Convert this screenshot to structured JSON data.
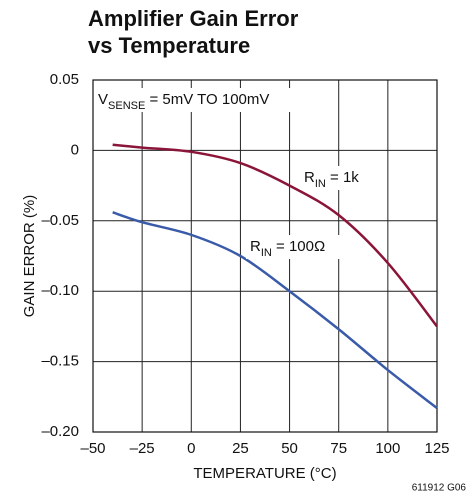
{
  "chart_data": {
    "type": "line",
    "title": [
      "Amplifier Gain Error",
      "vs Temperature"
    ],
    "x_label": "TEMPERATURE (°C)",
    "y_label": "GAIN ERROR (%)",
    "annotation": {
      "main": "V",
      "sub": "SENSE",
      "rest": " = 5mV TO 100mV"
    },
    "footnote": "611912 G06",
    "x": [
      -40,
      -25,
      0,
      25,
      50,
      75,
      100,
      125
    ],
    "series": [
      {
        "name": {
          "main": "R",
          "sub": "IN",
          "rest": " = 1k"
        },
        "color": "#8b1538",
        "values": [
          0.004,
          0.002,
          -0.001,
          -0.009,
          -0.025,
          -0.046,
          -0.08,
          -0.125
        ]
      },
      {
        "name": {
          "main": "R",
          "sub": "IN",
          "rest": " = 100Ω"
        },
        "color": "#3a5ba9",
        "values": [
          -0.044,
          -0.051,
          -0.06,
          -0.075,
          -0.1,
          -0.127,
          -0.156,
          -0.183
        ]
      }
    ],
    "xlim": [
      -50,
      125
    ],
    "xticks": [
      {
        "value": -50,
        "label": "–50"
      },
      {
        "value": -25,
        "label": "–25"
      },
      0,
      25,
      50,
      75,
      100,
      125
    ],
    "ylim": [
      -0.2,
      0.05
    ],
    "yticks": [
      0.05,
      0,
      {
        "value": -0.05,
        "label": "–0.05"
      },
      {
        "value": -0.1,
        "label": "–0.10"
      },
      {
        "value": -0.15,
        "label": "–0.15"
      },
      {
        "value": -0.2,
        "label": "–0.20"
      }
    ],
    "grid": true
  }
}
